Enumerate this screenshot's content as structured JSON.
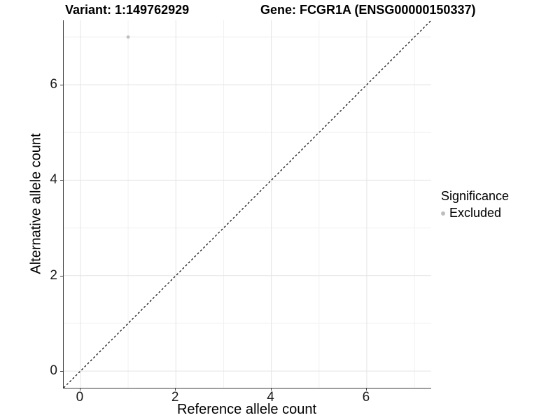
{
  "header": {
    "variant_title": "Variant: 1:149762929",
    "gene_title": "Gene: FCGR1A (ENSG00000150337)"
  },
  "chart_data": {
    "type": "scatter",
    "xlabel": "Reference allele count",
    "ylabel": "Alternative allele count",
    "xlim": [
      -0.35,
      7.35
    ],
    "ylim": [
      -0.35,
      7.35
    ],
    "x_ticks": [
      0,
      2,
      4,
      6
    ],
    "y_ticks": [
      0,
      2,
      4,
      6
    ],
    "x_minor_ticks": [
      1,
      3,
      5,
      7
    ],
    "y_minor_ticks": [
      1,
      3,
      5,
      7
    ],
    "grid": true,
    "series": [
      {
        "name": "Excluded",
        "color": "#bebebe",
        "point_radius": 2.4,
        "points": [
          {
            "x": 1,
            "y": 7
          }
        ]
      }
    ],
    "reference_line": {
      "kind": "identity",
      "from": [
        -0.35,
        -0.35
      ],
      "to": [
        7.35,
        7.35
      ],
      "style": "dashed",
      "color": "#000000"
    },
    "legend": {
      "title": "Significance",
      "position": "right",
      "items": [
        {
          "label": "Excluded",
          "color": "#bebebe"
        }
      ]
    },
    "colors": {
      "grid_major": "#e4e4e4",
      "grid_minor": "#f0f0f0",
      "axis_line": "#3d3d3d"
    }
  }
}
